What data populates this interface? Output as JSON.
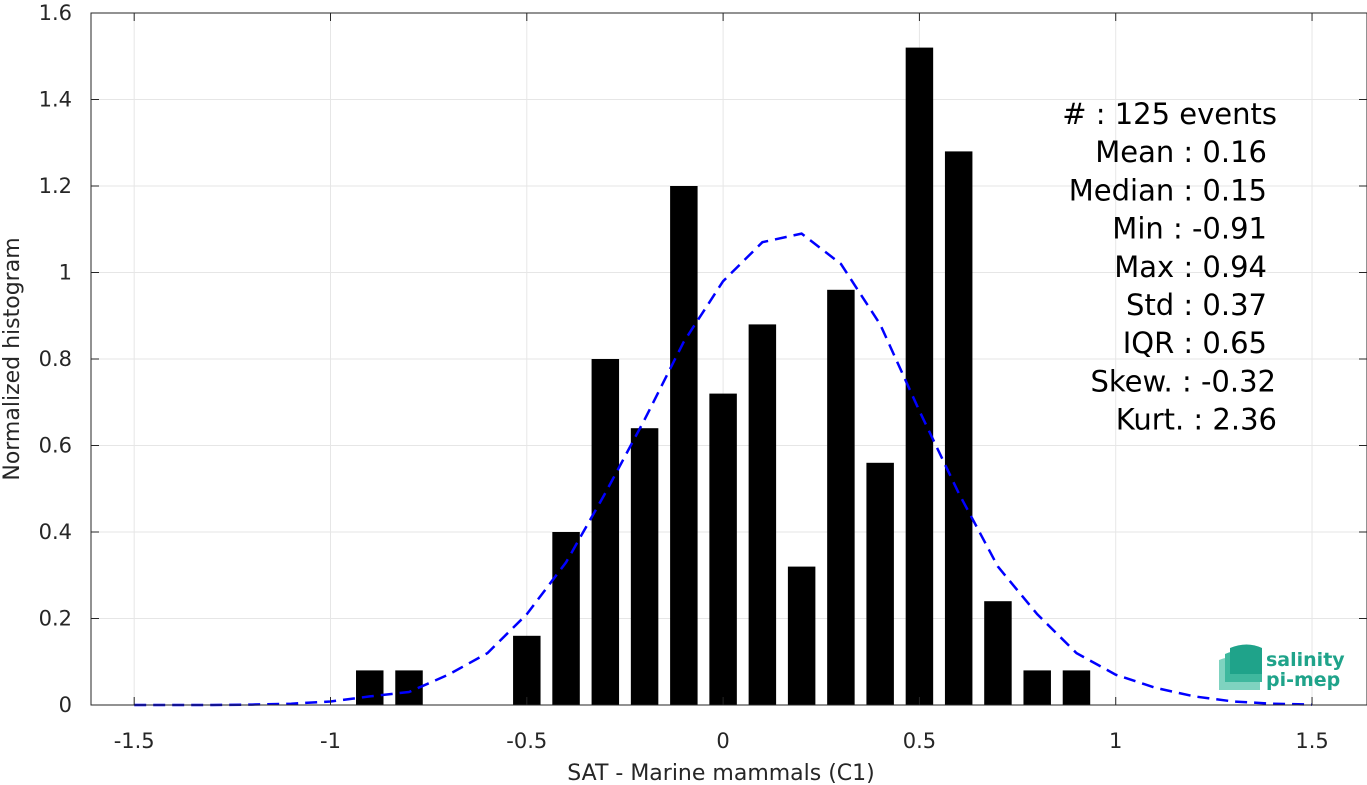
{
  "chart_data": {
    "type": "bar",
    "xlabel": "SAT - Marine mammals (C1)",
    "ylabel": "Normalized histogram",
    "xlim": [
      -1.5,
      1.5
    ],
    "ylim": [
      0,
      1.6
    ],
    "xticks": [
      -1.5,
      -1,
      -0.5,
      0,
      0.5,
      1,
      1.5
    ],
    "xtick_labels": [
      "-1.5",
      "-1",
      "-0.5",
      "0",
      "0.5",
      "1",
      "1.5"
    ],
    "yticks": [
      0,
      0.2,
      0.4,
      0.6,
      0.8,
      1,
      1.2,
      1.4,
      1.6
    ],
    "ytick_labels": [
      "0",
      "0.2",
      "0.4",
      "0.6",
      "0.8",
      "1",
      "1.2",
      "1.4",
      "1.6"
    ],
    "grid": true,
    "bar_color": "#000000",
    "bar_width": 0.07,
    "bars": {
      "x": [
        -0.9,
        -0.8,
        -0.5,
        -0.4,
        -0.3,
        -0.2,
        -0.1,
        0,
        0.1,
        0.2,
        0.3,
        0.4,
        0.5,
        0.6,
        0.7,
        0.8,
        0.9
      ],
      "values": [
        0.08,
        0.08,
        0.16,
        0.4,
        0.8,
        0.64,
        1.2,
        0.72,
        0.88,
        0.32,
        0.96,
        0.56,
        1.52,
        1.28,
        0.24,
        0.08,
        0.08
      ]
    },
    "fit_curve": {
      "style": "dashed",
      "color": "#0000ff",
      "x": [
        -1.5,
        -1.4,
        -1.3,
        -1.2,
        -1.1,
        -1.0,
        -0.9,
        -0.8,
        -0.7,
        -0.6,
        -0.5,
        -0.4,
        -0.3,
        -0.2,
        -0.1,
        0.0,
        0.1,
        0.2,
        0.3,
        0.4,
        0.5,
        0.6,
        0.7,
        0.8,
        0.9,
        1.0,
        1.1,
        1.2,
        1.3,
        1.4,
        1.5
      ],
      "y": [
        0.0,
        0.0,
        0.0,
        0.001,
        0.003,
        0.008,
        0.02,
        0.03,
        0.07,
        0.12,
        0.21,
        0.33,
        0.49,
        0.66,
        0.84,
        0.98,
        1.07,
        1.09,
        1.02,
        0.88,
        0.68,
        0.49,
        0.32,
        0.21,
        0.12,
        0.07,
        0.04,
        0.02,
        0.008,
        0.003,
        0.001
      ]
    },
    "annotations": [
      "#  : 125 events",
      "Mean : 0.16",
      "Median : 0.15",
      "Min : -0.91",
      "Max : 0.94",
      "Std : 0.37",
      "IQR : 0.65",
      "Skew. : -0.32",
      "Kurt. : 2.36"
    ]
  },
  "logo": {
    "line1": "salinity",
    "line2": "pi-mep",
    "color": "#1fa38a"
  }
}
